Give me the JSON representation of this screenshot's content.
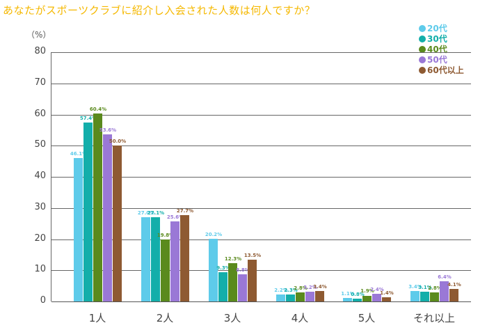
{
  "title": "あなたがスポーツクラブに紹介し入会された人数は何人ですか？",
  "unit_label": "（%）",
  "legend": [
    {
      "label": "20代",
      "color": "#5ecbea"
    },
    {
      "label": "30代",
      "color": "#13aeaa"
    },
    {
      "label": "40代",
      "color": "#5a8a1d"
    },
    {
      "label": "50代",
      "color": "#9a78d6"
    },
    {
      "label": "60代以上",
      "color": "#8e5a32"
    }
  ],
  "chart_data": {
    "type": "bar",
    "title": "あなたがスポーツクラブに紹介し入会された人数は何人ですか？",
    "xlabel": "",
    "ylabel": "（%）",
    "ylim": [
      0,
      80
    ],
    "yticks": [
      0,
      10,
      20,
      30,
      40,
      50,
      60,
      70,
      80
    ],
    "grid": true,
    "legend_position": "top-right",
    "categories": [
      "1人",
      "2人",
      "3人",
      "4人",
      "5人",
      "それ以上"
    ],
    "series": [
      {
        "name": "20代",
        "color": "#5ecbea",
        "values": [
          46.1,
          27.0,
          20.2,
          2.2,
          1.1,
          3.4
        ]
      },
      {
        "name": "30代",
        "color": "#13aeaa",
        "values": [
          57.4,
          27.1,
          9.3,
          2.3,
          0.8,
          3.1
        ]
      },
      {
        "name": "40代",
        "color": "#5a8a1d",
        "values": [
          60.4,
          19.8,
          12.3,
          2.8,
          1.9,
          2.8
        ]
      },
      {
        "name": "50代",
        "color": "#9a78d6",
        "values": [
          53.6,
          25.6,
          8.8,
          3.2,
          2.4,
          6.4
        ]
      },
      {
        "name": "60代以上",
        "color": "#8e5a32",
        "values": [
          50.0,
          27.7,
          13.5,
          3.4,
          1.4,
          4.1
        ]
      }
    ]
  }
}
